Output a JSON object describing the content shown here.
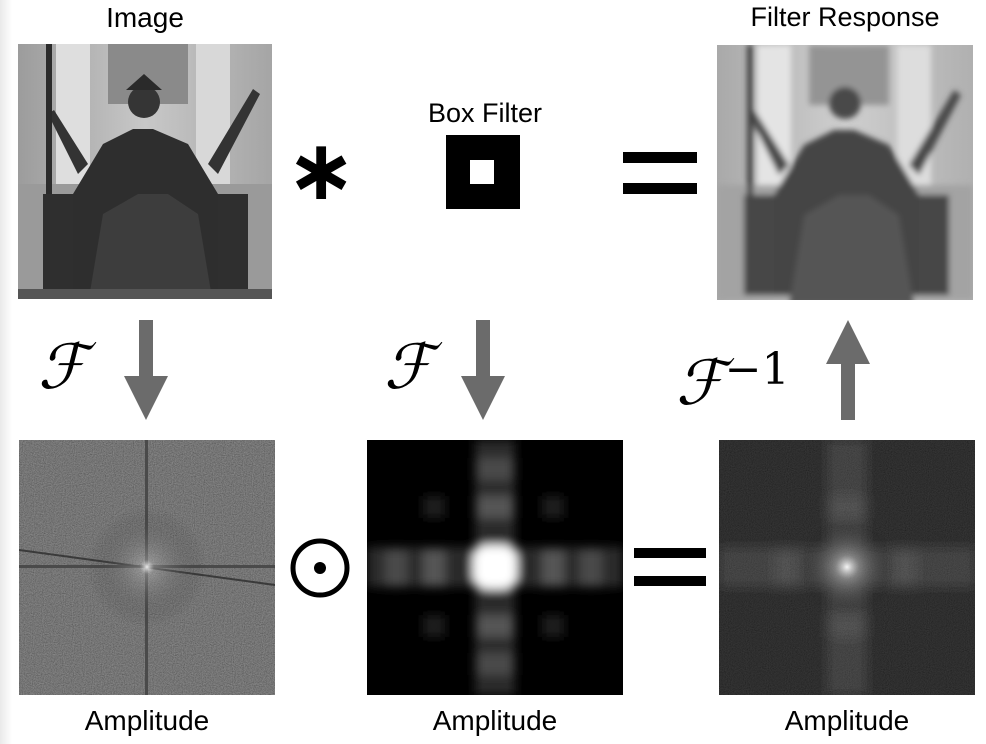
{
  "labels": {
    "image": "Image",
    "box_filter": "Box Filter",
    "filter_response": "Filter Response",
    "amplitude_left": "Amplitude",
    "amplitude_middle": "Amplitude",
    "amplitude_right": "Amplitude"
  },
  "operators": {
    "convolution": "∗",
    "equals_top": "=",
    "hadamard": "⊙",
    "equals_bottom": "="
  },
  "transforms": {
    "forward_left": "ℱ",
    "forward_middle": "ℱ",
    "inverse": "ℱ",
    "inverse_exponent": "−1"
  },
  "colors": {
    "arrow": "#6b6b6b",
    "spectrum_background": "#000000",
    "statue": "#3a3a3a",
    "building": "#b8b8b8"
  }
}
